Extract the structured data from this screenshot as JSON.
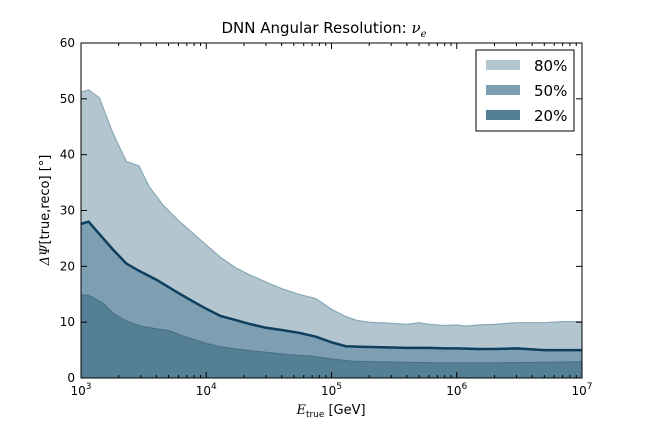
{
  "chart_data": {
    "type": "area",
    "title": "DNN Angular Resolution: ",
    "title_symbol": "ν",
    "title_subscript": "e",
    "xlabel_symbol": "E",
    "xlabel_subscript": "true",
    "xlabel_unit": "[GeV]",
    "ylabel_symbol": "ΔΨ",
    "ylabel_text": "[true,reco] [°]",
    "x_scale": "log",
    "xlim": [
      1000,
      10000000
    ],
    "ylim": [
      0,
      60
    ],
    "grid": false,
    "legend_position": "top-right",
    "x_ticks": [
      {
        "value": 1000,
        "base": "10",
        "exp": "3"
      },
      {
        "value": 10000,
        "base": "10",
        "exp": "4"
      },
      {
        "value": 100000,
        "base": "10",
        "exp": "5"
      },
      {
        "value": 1000000,
        "base": "10",
        "exp": "6"
      },
      {
        "value": 10000000,
        "base": "10",
        "exp": "7"
      }
    ],
    "y_ticks": [
      {
        "value": 0,
        "label": "0"
      },
      {
        "value": 10,
        "label": "10"
      },
      {
        "value": 20,
        "label": "20"
      },
      {
        "value": 30,
        "label": "30"
      },
      {
        "value": 40,
        "label": "40"
      },
      {
        "value": 50,
        "label": "50"
      },
      {
        "value": 60,
        "label": "60"
      }
    ],
    "series": [
      {
        "name": "80%",
        "fill": "#b3c6cf",
        "edge": "#8aa8b8",
        "points": [
          [
            1000,
            51.2
          ],
          [
            1150,
            51.6
          ],
          [
            1400,
            50.2
          ],
          [
            1800,
            43.8
          ],
          [
            2300,
            38.8
          ],
          [
            2900,
            38.0
          ],
          [
            3500,
            34.3
          ],
          [
            4500,
            31.0
          ],
          [
            6000,
            28.2
          ],
          [
            7500,
            26.3
          ],
          [
            10000,
            23.8
          ],
          [
            13000,
            21.6
          ],
          [
            17000,
            19.8
          ],
          [
            22000,
            18.5
          ],
          [
            30000,
            17.2
          ],
          [
            40000,
            16.0
          ],
          [
            55000,
            15.0
          ],
          [
            75000,
            14.2
          ],
          [
            100000,
            12.3
          ],
          [
            130000,
            11.0
          ],
          [
            160000,
            10.3
          ],
          [
            200000,
            10.0
          ],
          [
            300000,
            9.8
          ],
          [
            400000,
            9.6
          ],
          [
            500000,
            9.9
          ],
          [
            600000,
            9.6
          ],
          [
            800000,
            9.4
          ],
          [
            1000000,
            9.5
          ],
          [
            1200000,
            9.3
          ],
          [
            1500000,
            9.5
          ],
          [
            2000000,
            9.6
          ],
          [
            3000000,
            9.9
          ],
          [
            5000000,
            9.9
          ],
          [
            7000000,
            10.1
          ],
          [
            10000000,
            10.1
          ]
        ]
      },
      {
        "name": "50%",
        "fill": "#7e9eb1",
        "edge": "#0e3f5f",
        "points": [
          [
            1000,
            27.6
          ],
          [
            1150,
            28.0
          ],
          [
            1400,
            25.8
          ],
          [
            1800,
            23.0
          ],
          [
            2300,
            20.5
          ],
          [
            2900,
            19.2
          ],
          [
            4000,
            17.6
          ],
          [
            6000,
            15.2
          ],
          [
            8000,
            13.6
          ],
          [
            10000,
            12.4
          ],
          [
            13000,
            11.1
          ],
          [
            17000,
            10.4
          ],
          [
            22000,
            9.7
          ],
          [
            30000,
            9.0
          ],
          [
            40000,
            8.6
          ],
          [
            55000,
            8.1
          ],
          [
            75000,
            7.4
          ],
          [
            100000,
            6.4
          ],
          [
            130000,
            5.7
          ],
          [
            170000,
            5.6
          ],
          [
            250000,
            5.5
          ],
          [
            400000,
            5.4
          ],
          [
            600000,
            5.4
          ],
          [
            800000,
            5.3
          ],
          [
            1000000,
            5.3
          ],
          [
            1500000,
            5.2
          ],
          [
            2000000,
            5.2
          ],
          [
            3000000,
            5.3
          ],
          [
            4000,
            17.6
          ],
          [
            5000000,
            5.0
          ],
          [
            7000000,
            5.0
          ],
          [
            10000000,
            5.0
          ]
        ]
      },
      {
        "name": "20%",
        "fill": "#547f95",
        "edge": "#4a7388",
        "points": [
          [
            1000,
            14.9
          ],
          [
            1150,
            14.8
          ],
          [
            1500,
            13.4
          ],
          [
            1800,
            11.6
          ],
          [
            2300,
            10.2
          ],
          [
            3000,
            9.3
          ],
          [
            4000,
            8.8
          ],
          [
            5000,
            8.5
          ],
          [
            6500,
            7.5
          ],
          [
            8000,
            6.9
          ],
          [
            10000,
            6.2
          ],
          [
            13000,
            5.6
          ],
          [
            17000,
            5.2
          ],
          [
            22000,
            4.9
          ],
          [
            30000,
            4.6
          ],
          [
            45000,
            4.2
          ],
          [
            70000,
            3.9
          ],
          [
            100000,
            3.4
          ],
          [
            150000,
            3.0
          ],
          [
            250000,
            2.9
          ],
          [
            400000,
            2.8
          ],
          [
            700000,
            2.7
          ],
          [
            1000000,
            2.7
          ],
          [
            2000000,
            2.7
          ],
          [
            5000000,
            2.8
          ],
          [
            10000000,
            2.9
          ]
        ]
      }
    ]
  }
}
